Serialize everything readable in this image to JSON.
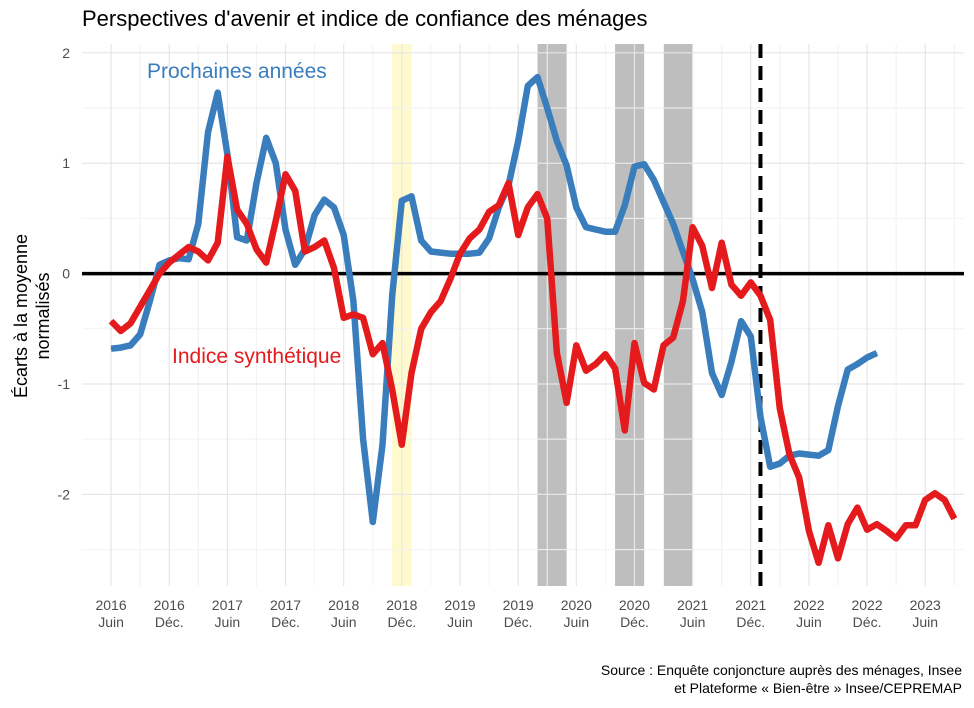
{
  "title": "Perspectives d'avenir et indice de confiance des ménages",
  "source_line1": "Source : Enquête conjoncture auprès des ménages, Insee",
  "source_line2": "et Plateforme « Bien-être » Insee/CEPREMAP",
  "chart_data": {
    "type": "line",
    "title": "Perspectives d'avenir et indice de confiance des ménages",
    "ylabel": "Écarts à la moyenne\nnormalisés",
    "ylim": [
      -2.83,
      2.08
    ],
    "yticks": [
      -2,
      -1,
      0,
      1,
      2
    ],
    "ytick_labels": [
      "-2",
      "-1",
      "0",
      "1",
      "2"
    ],
    "xlim": [
      "2016-03",
      "2023-10"
    ],
    "x_ticks": [
      {
        "date": "2016-06",
        "year": "2016",
        "period": "Juin"
      },
      {
        "date": "2016-12",
        "year": "2016",
        "period": "Déc."
      },
      {
        "date": "2017-06",
        "year": "2017",
        "period": "Juin"
      },
      {
        "date": "2017-12",
        "year": "2017",
        "period": "Déc."
      },
      {
        "date": "2018-06",
        "year": "2018",
        "period": "Juin"
      },
      {
        "date": "2018-12",
        "year": "2018",
        "period": "Déc."
      },
      {
        "date": "2019-06",
        "year": "2019",
        "period": "Juin"
      },
      {
        "date": "2019-12",
        "year": "2019",
        "period": "Déc."
      },
      {
        "date": "2020-06",
        "year": "2020",
        "period": "Juin"
      },
      {
        "date": "2020-12",
        "year": "2020",
        "period": "Déc."
      },
      {
        "date": "2021-06",
        "year": "2021",
        "period": "Juin"
      },
      {
        "date": "2021-12",
        "year": "2021",
        "period": "Déc."
      },
      {
        "date": "2022-06",
        "year": "2022",
        "period": "Juin"
      },
      {
        "date": "2022-12",
        "year": "2022",
        "period": "Déc."
      },
      {
        "date": "2023-06",
        "year": "2023",
        "period": "Juin"
      }
    ],
    "shaded_periods": [
      {
        "start": "2018-11",
        "end": "2018-12",
        "color": "#fffacd"
      },
      {
        "start": "2020-02",
        "end": "2020-04",
        "color": "#bebebe"
      },
      {
        "start": "2020-10",
        "end": "2020-12",
        "color": "#bebebe"
      },
      {
        "start": "2021-03",
        "end": "2021-05",
        "color": "#bebebe"
      }
    ],
    "vertical_line": {
      "date": "2022-01",
      "style": "dashed",
      "color": "#000000"
    },
    "zero_line": true,
    "grid": true,
    "series": [
      {
        "name": "Prochaines années",
        "color": "#3a7dbd",
        "label_position": "top-left",
        "points": [
          [
            "2016-06",
            -0.68
          ],
          [
            "2016-07",
            -0.67
          ],
          [
            "2016-08",
            -0.65
          ],
          [
            "2016-09",
            -0.55
          ],
          [
            "2016-10",
            -0.25
          ],
          [
            "2016-11",
            0.08
          ],
          [
            "2016-12",
            0.12
          ],
          [
            "2017-01",
            0.14
          ],
          [
            "2017-02",
            0.13
          ],
          [
            "2017-03",
            0.45
          ],
          [
            "2017-04",
            1.28
          ],
          [
            "2017-05",
            1.64
          ],
          [
            "2017-06",
            1.08
          ],
          [
            "2017-07",
            0.33
          ],
          [
            "2017-08",
            0.3
          ],
          [
            "2017-09",
            0.82
          ],
          [
            "2017-10",
            1.23
          ],
          [
            "2017-11",
            1.0
          ],
          [
            "2017-12",
            0.4
          ],
          [
            "2018-01",
            0.08
          ],
          [
            "2018-02",
            0.22
          ],
          [
            "2018-03",
            0.53
          ],
          [
            "2018-04",
            0.67
          ],
          [
            "2018-05",
            0.6
          ],
          [
            "2018-06",
            0.35
          ],
          [
            "2018-07",
            -0.25
          ],
          [
            "2018-08",
            -1.5
          ],
          [
            "2018-09",
            -2.25
          ],
          [
            "2018-10",
            -1.55
          ],
          [
            "2018-11",
            -0.2
          ],
          [
            "2018-12",
            0.66
          ],
          [
            "2019-01",
            0.7
          ],
          [
            "2019-02",
            0.3
          ],
          [
            "2019-03",
            0.2
          ],
          [
            "2019-04",
            0.19
          ],
          [
            "2019-05",
            0.18
          ],
          [
            "2019-06",
            0.18
          ],
          [
            "2019-07",
            0.18
          ],
          [
            "2019-08",
            0.19
          ],
          [
            "2019-09",
            0.32
          ],
          [
            "2019-10",
            0.6
          ],
          [
            "2019-11",
            0.8
          ],
          [
            "2019-12",
            1.2
          ],
          [
            "2020-01",
            1.7
          ],
          [
            "2020-02",
            1.78
          ],
          [
            "2020-03",
            1.5
          ],
          [
            "2020-04",
            1.2
          ],
          [
            "2020-05",
            0.98
          ],
          [
            "2020-06",
            0.6
          ],
          [
            "2020-07",
            0.42
          ],
          [
            "2020-08",
            0.4
          ],
          [
            "2020-09",
            0.38
          ],
          [
            "2020-10",
            0.38
          ],
          [
            "2020-11",
            0.62
          ],
          [
            "2020-12",
            0.97
          ],
          [
            "2021-01",
            0.99
          ],
          [
            "2021-02",
            0.85
          ],
          [
            "2021-03",
            0.65
          ],
          [
            "2021-04",
            0.45
          ],
          [
            "2021-05",
            0.2
          ],
          [
            "2021-06",
            -0.05
          ],
          [
            "2021-07",
            -0.35
          ],
          [
            "2021-08",
            -0.9
          ],
          [
            "2021-09",
            -1.1
          ],
          [
            "2021-10",
            -0.8
          ],
          [
            "2021-11",
            -0.43
          ],
          [
            "2021-12",
            -0.57
          ],
          [
            "2022-01",
            -1.3
          ],
          [
            "2022-02",
            -1.75
          ],
          [
            "2022-03",
            -1.72
          ],
          [
            "2022-04",
            -1.65
          ],
          [
            "2022-05",
            -1.63
          ],
          [
            "2022-06",
            -1.64
          ],
          [
            "2022-07",
            -1.65
          ],
          [
            "2022-08",
            -1.6
          ],
          [
            "2022-09",
            -1.2
          ],
          [
            "2022-10",
            -0.87
          ],
          [
            "2022-11",
            -0.82
          ],
          [
            "2022-12",
            -0.76
          ],
          [
            "2023-01",
            -0.72
          ]
        ]
      },
      {
        "name": "Indice synthétique",
        "color": "#e41a1c",
        "label_position": "middle-left",
        "points": [
          [
            "2016-06",
            -0.43
          ],
          [
            "2016-07",
            -0.52
          ],
          [
            "2016-08",
            -0.45
          ],
          [
            "2016-09",
            -0.3
          ],
          [
            "2016-10",
            -0.15
          ],
          [
            "2016-11",
            0.0
          ],
          [
            "2016-12",
            0.1
          ],
          [
            "2017-01",
            0.17
          ],
          [
            "2017-02",
            0.24
          ],
          [
            "2017-03",
            0.2
          ],
          [
            "2017-04",
            0.12
          ],
          [
            "2017-05",
            0.28
          ],
          [
            "2017-06",
            1.06
          ],
          [
            "2017-07",
            0.58
          ],
          [
            "2017-08",
            0.45
          ],
          [
            "2017-09",
            0.22
          ],
          [
            "2017-10",
            0.1
          ],
          [
            "2017-11",
            0.48
          ],
          [
            "2017-12",
            0.9
          ],
          [
            "2018-01",
            0.75
          ],
          [
            "2018-02",
            0.2
          ],
          [
            "2018-03",
            0.24
          ],
          [
            "2018-04",
            0.3
          ],
          [
            "2018-05",
            0.05
          ],
          [
            "2018-06",
            -0.4
          ],
          [
            "2018-07",
            -0.37
          ],
          [
            "2018-08",
            -0.4
          ],
          [
            "2018-09",
            -0.73
          ],
          [
            "2018-10",
            -0.63
          ],
          [
            "2018-11",
            -1.05
          ],
          [
            "2018-12",
            -1.55
          ],
          [
            "2019-01",
            -0.9
          ],
          [
            "2019-02",
            -0.5
          ],
          [
            "2019-03",
            -0.35
          ],
          [
            "2019-04",
            -0.25
          ],
          [
            "2019-05",
            -0.05
          ],
          [
            "2019-06",
            0.18
          ],
          [
            "2019-07",
            0.32
          ],
          [
            "2019-08",
            0.4
          ],
          [
            "2019-09",
            0.56
          ],
          [
            "2019-10",
            0.62
          ],
          [
            "2019-11",
            0.82
          ],
          [
            "2019-12",
            0.35
          ],
          [
            "2020-01",
            0.6
          ],
          [
            "2020-02",
            0.72
          ],
          [
            "2020-03",
            0.5
          ],
          [
            "2020-04",
            -0.72
          ],
          [
            "2020-05",
            -1.17
          ],
          [
            "2020-06",
            -0.65
          ],
          [
            "2020-07",
            -0.88
          ],
          [
            "2020-08",
            -0.82
          ],
          [
            "2020-09",
            -0.73
          ],
          [
            "2020-10",
            -0.86
          ],
          [
            "2020-11",
            -1.42
          ],
          [
            "2020-12",
            -0.63
          ],
          [
            "2021-01",
            -0.99
          ],
          [
            "2021-02",
            -1.05
          ],
          [
            "2021-03",
            -0.65
          ],
          [
            "2021-04",
            -0.58
          ],
          [
            "2021-05",
            -0.25
          ],
          [
            "2021-06",
            0.42
          ],
          [
            "2021-07",
            0.25
          ],
          [
            "2021-08",
            -0.13
          ],
          [
            "2021-09",
            0.28
          ],
          [
            "2021-10",
            -0.1
          ],
          [
            "2021-11",
            -0.2
          ],
          [
            "2021-12",
            -0.08
          ],
          [
            "2022-01",
            -0.2
          ],
          [
            "2022-02",
            -0.42
          ],
          [
            "2022-03",
            -1.22
          ],
          [
            "2022-04",
            -1.64
          ],
          [
            "2022-05",
            -1.85
          ],
          [
            "2022-06",
            -2.33
          ],
          [
            "2022-07",
            -2.62
          ],
          [
            "2022-08",
            -2.28
          ],
          [
            "2022-09",
            -2.58
          ],
          [
            "2022-10",
            -2.27
          ],
          [
            "2022-11",
            -2.12
          ],
          [
            "2022-12",
            -2.32
          ],
          [
            "2023-01",
            -2.27
          ],
          [
            "2023-02",
            -2.33
          ],
          [
            "2023-03",
            -2.4
          ],
          [
            "2023-04",
            -2.28
          ],
          [
            "2023-05",
            -2.28
          ],
          [
            "2023-06",
            -2.05
          ],
          [
            "2023-07",
            -1.99
          ],
          [
            "2023-08",
            -2.05
          ],
          [
            "2023-09",
            -2.22
          ]
        ]
      }
    ]
  }
}
